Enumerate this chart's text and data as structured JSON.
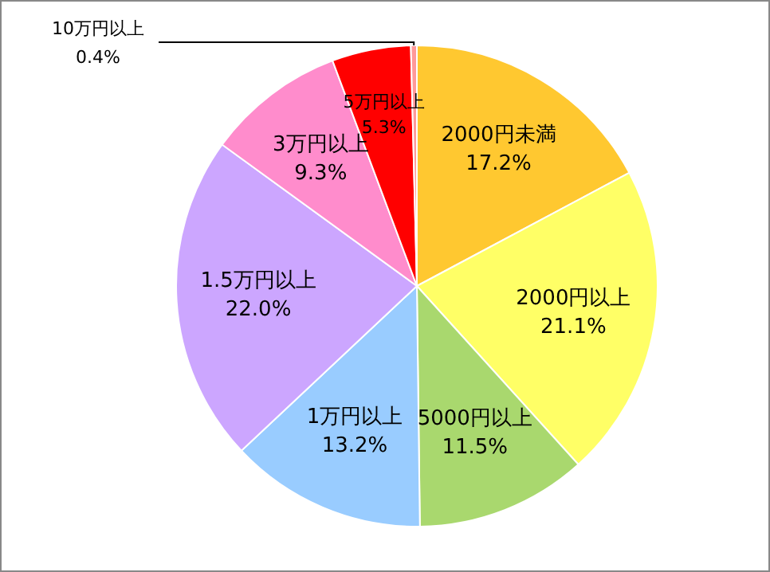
{
  "chart_data": {
    "type": "pie",
    "categories": [
      "2000円未満",
      "2000円以上",
      "5000円以上",
      "1万円以上",
      "1.5万円以上",
      "3万円以上",
      "5万円以上",
      "10万円以上"
    ],
    "values": [
      17.2,
      21.1,
      11.5,
      13.2,
      22.0,
      9.3,
      5.3,
      0.4
    ],
    "value_labels": [
      "17.2%",
      "21.1%",
      "11.5%",
      "13.2%",
      "22.0%",
      "9.3%",
      "5.3%",
      "0.4%"
    ],
    "colors": [
      "#ffc830",
      "#ffff66",
      "#a9d86e",
      "#99ccff",
      "#cca6ff",
      "#ff8ccc",
      "#ff0000",
      "#ff9999"
    ],
    "legend": false
  }
}
